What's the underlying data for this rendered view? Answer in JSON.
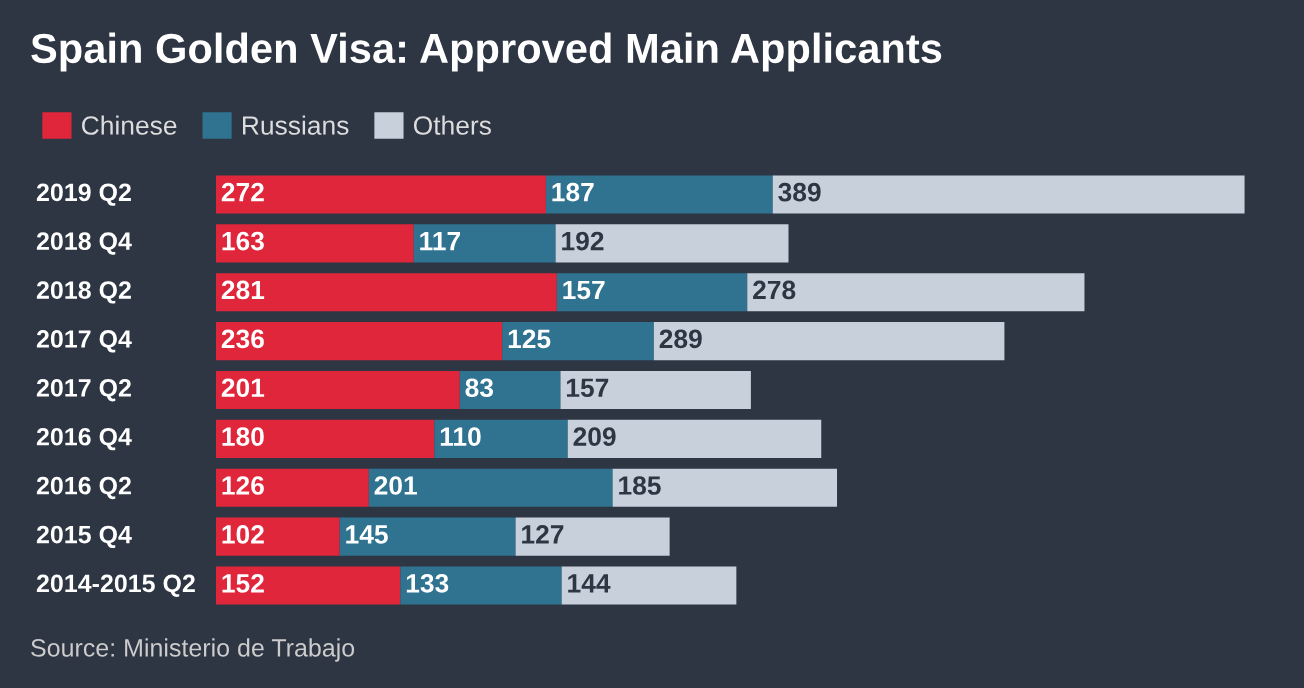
{
  "chart_data": {
    "type": "bar",
    "orientation": "horizontal",
    "stacked": true,
    "title": "Spain Golden Visa: Approved Main Applicants",
    "categories": [
      "2019 Q2",
      "2018 Q4",
      "2018 Q2",
      "2017 Q4",
      "2017 Q2",
      "2016 Q4",
      "2016 Q2",
      "2015 Q4",
      "2014-2015 Q2"
    ],
    "series": [
      {
        "name": "Chinese",
        "color": "#e0263a",
        "values": [
          272,
          163,
          281,
          236,
          201,
          180,
          126,
          102,
          152
        ]
      },
      {
        "name": "Russians",
        "color": "#2f7391",
        "values": [
          187,
          117,
          157,
          125,
          83,
          110,
          201,
          145,
          133
        ]
      },
      {
        "name": "Others",
        "color": "#c8d0dc",
        "values": [
          389,
          192,
          278,
          289,
          157,
          209,
          185,
          127,
          144
        ]
      }
    ],
    "data_labels": true,
    "legend": "top left",
    "annotations": [
      "Source: Ministerio de Trabajo"
    ]
  }
}
